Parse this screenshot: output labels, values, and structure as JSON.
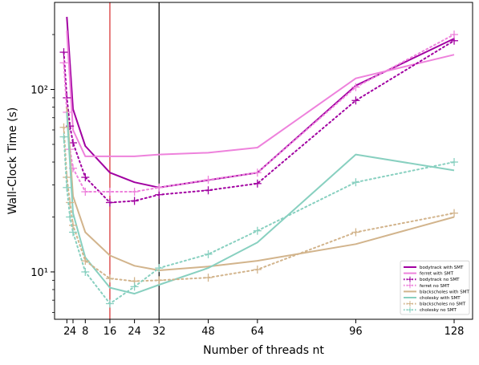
{
  "chart_data": {
    "type": "line",
    "title": "",
    "xlabel": "Number of threads nt",
    "ylabel": "Wall-Clock Time (s)",
    "yscale": "log",
    "xlim": [
      -2,
      134
    ],
    "ylim": [
      5.5,
      300
    ],
    "xticks": [
      2,
      4,
      8,
      16,
      24,
      32,
      48,
      64,
      96,
      128
    ],
    "x_tick_labels": [
      "2",
      "4",
      "8",
      "16",
      "24",
      "32",
      "48",
      "64",
      "96",
      "128"
    ],
    "yticks": [
      10,
      100
    ],
    "y_tick_labels": [
      "10¹",
      "10²"
    ],
    "vlines": [
      {
        "x": 16,
        "color": "#d62728"
      },
      {
        "x": 32,
        "color": "#000000"
      }
    ],
    "grid": false,
    "legend_position": "lower-right",
    "series": [
      {
        "name": "bodytrack with SMT",
        "color": "#a100a1",
        "style": "solid",
        "marker": "none",
        "width": 2,
        "x": [
          2,
          4,
          8,
          16,
          24,
          32,
          64,
          96,
          128
        ],
        "y": [
          250,
          78,
          49,
          35,
          31,
          29,
          35,
          105,
          190
        ]
      },
      {
        "name": "ferret with SMT",
        "color": "#ee82dc",
        "style": "solid",
        "marker": "none",
        "width": 2,
        "x": [
          2,
          4,
          8,
          16,
          24,
          32,
          48,
          64,
          96,
          128
        ],
        "y": [
          210,
          60,
          43,
          43,
          43,
          44,
          45,
          48,
          115,
          155
        ]
      },
      {
        "name": "bodytrack no SMT",
        "color": "#a100a1",
        "style": "dotted",
        "marker": "plus",
        "width": 2,
        "x": [
          1,
          2,
          3,
          4,
          8,
          16,
          24,
          32,
          48,
          64,
          96,
          128
        ],
        "y": [
          160,
          90,
          63,
          51,
          33,
          24,
          24.5,
          26.5,
          28,
          30.5,
          87,
          185
        ]
      },
      {
        "name": "ferret no SMT",
        "color": "#ee82dc",
        "style": "dotted",
        "marker": "plus",
        "width": 2,
        "x": [
          1,
          2,
          3,
          4,
          8,
          16,
          24,
          32,
          48,
          64,
          96,
          128
        ],
        "y": [
          140,
          75,
          47,
          37,
          27.5,
          27.5,
          27.5,
          29,
          32,
          35,
          103,
          200
        ]
      },
      {
        "name": "blackscholes with SMT",
        "color": "#d2b48c",
        "style": "solid",
        "marker": "none",
        "width": 2,
        "x": [
          2,
          4,
          8,
          16,
          24,
          32,
          48,
          64,
          96,
          128
        ],
        "y": [
          80,
          26,
          16.5,
          12.3,
          10.8,
          10.2,
          10.7,
          11.5,
          14.2,
          20
        ]
      },
      {
        "name": "cholesky with SMT",
        "color": "#88d0c0",
        "style": "solid",
        "marker": "none",
        "width": 2,
        "x": [
          2,
          4,
          8,
          16,
          24,
          32,
          48,
          64,
          96,
          128
        ],
        "y": [
          75,
          21,
          12,
          8.2,
          7.6,
          8.5,
          10.5,
          14.5,
          44,
          36
        ]
      },
      {
        "name": "blackscholes no SMT",
        "color": "#d2b48c",
        "style": "dotted",
        "marker": "plus",
        "width": 2,
        "x": [
          1,
          2,
          3,
          4,
          8,
          16,
          24,
          32,
          48,
          64,
          96,
          128
        ],
        "y": [
          62,
          33,
          24,
          18,
          11.5,
          9.2,
          8.9,
          9.0,
          9.3,
          10.3,
          16.5,
          21
        ]
      },
      {
        "name": "cholesky no SMT",
        "color": "#88d0c0",
        "style": "dotted",
        "marker": "plus",
        "width": 2,
        "x": [
          1,
          2,
          3,
          4,
          8,
          16,
          24,
          32,
          48,
          64,
          96,
          128
        ],
        "y": [
          55,
          29,
          20,
          16.5,
          10,
          6.7,
          8.3,
          10.5,
          12.5,
          16.8,
          31,
          40
        ]
      }
    ]
  }
}
